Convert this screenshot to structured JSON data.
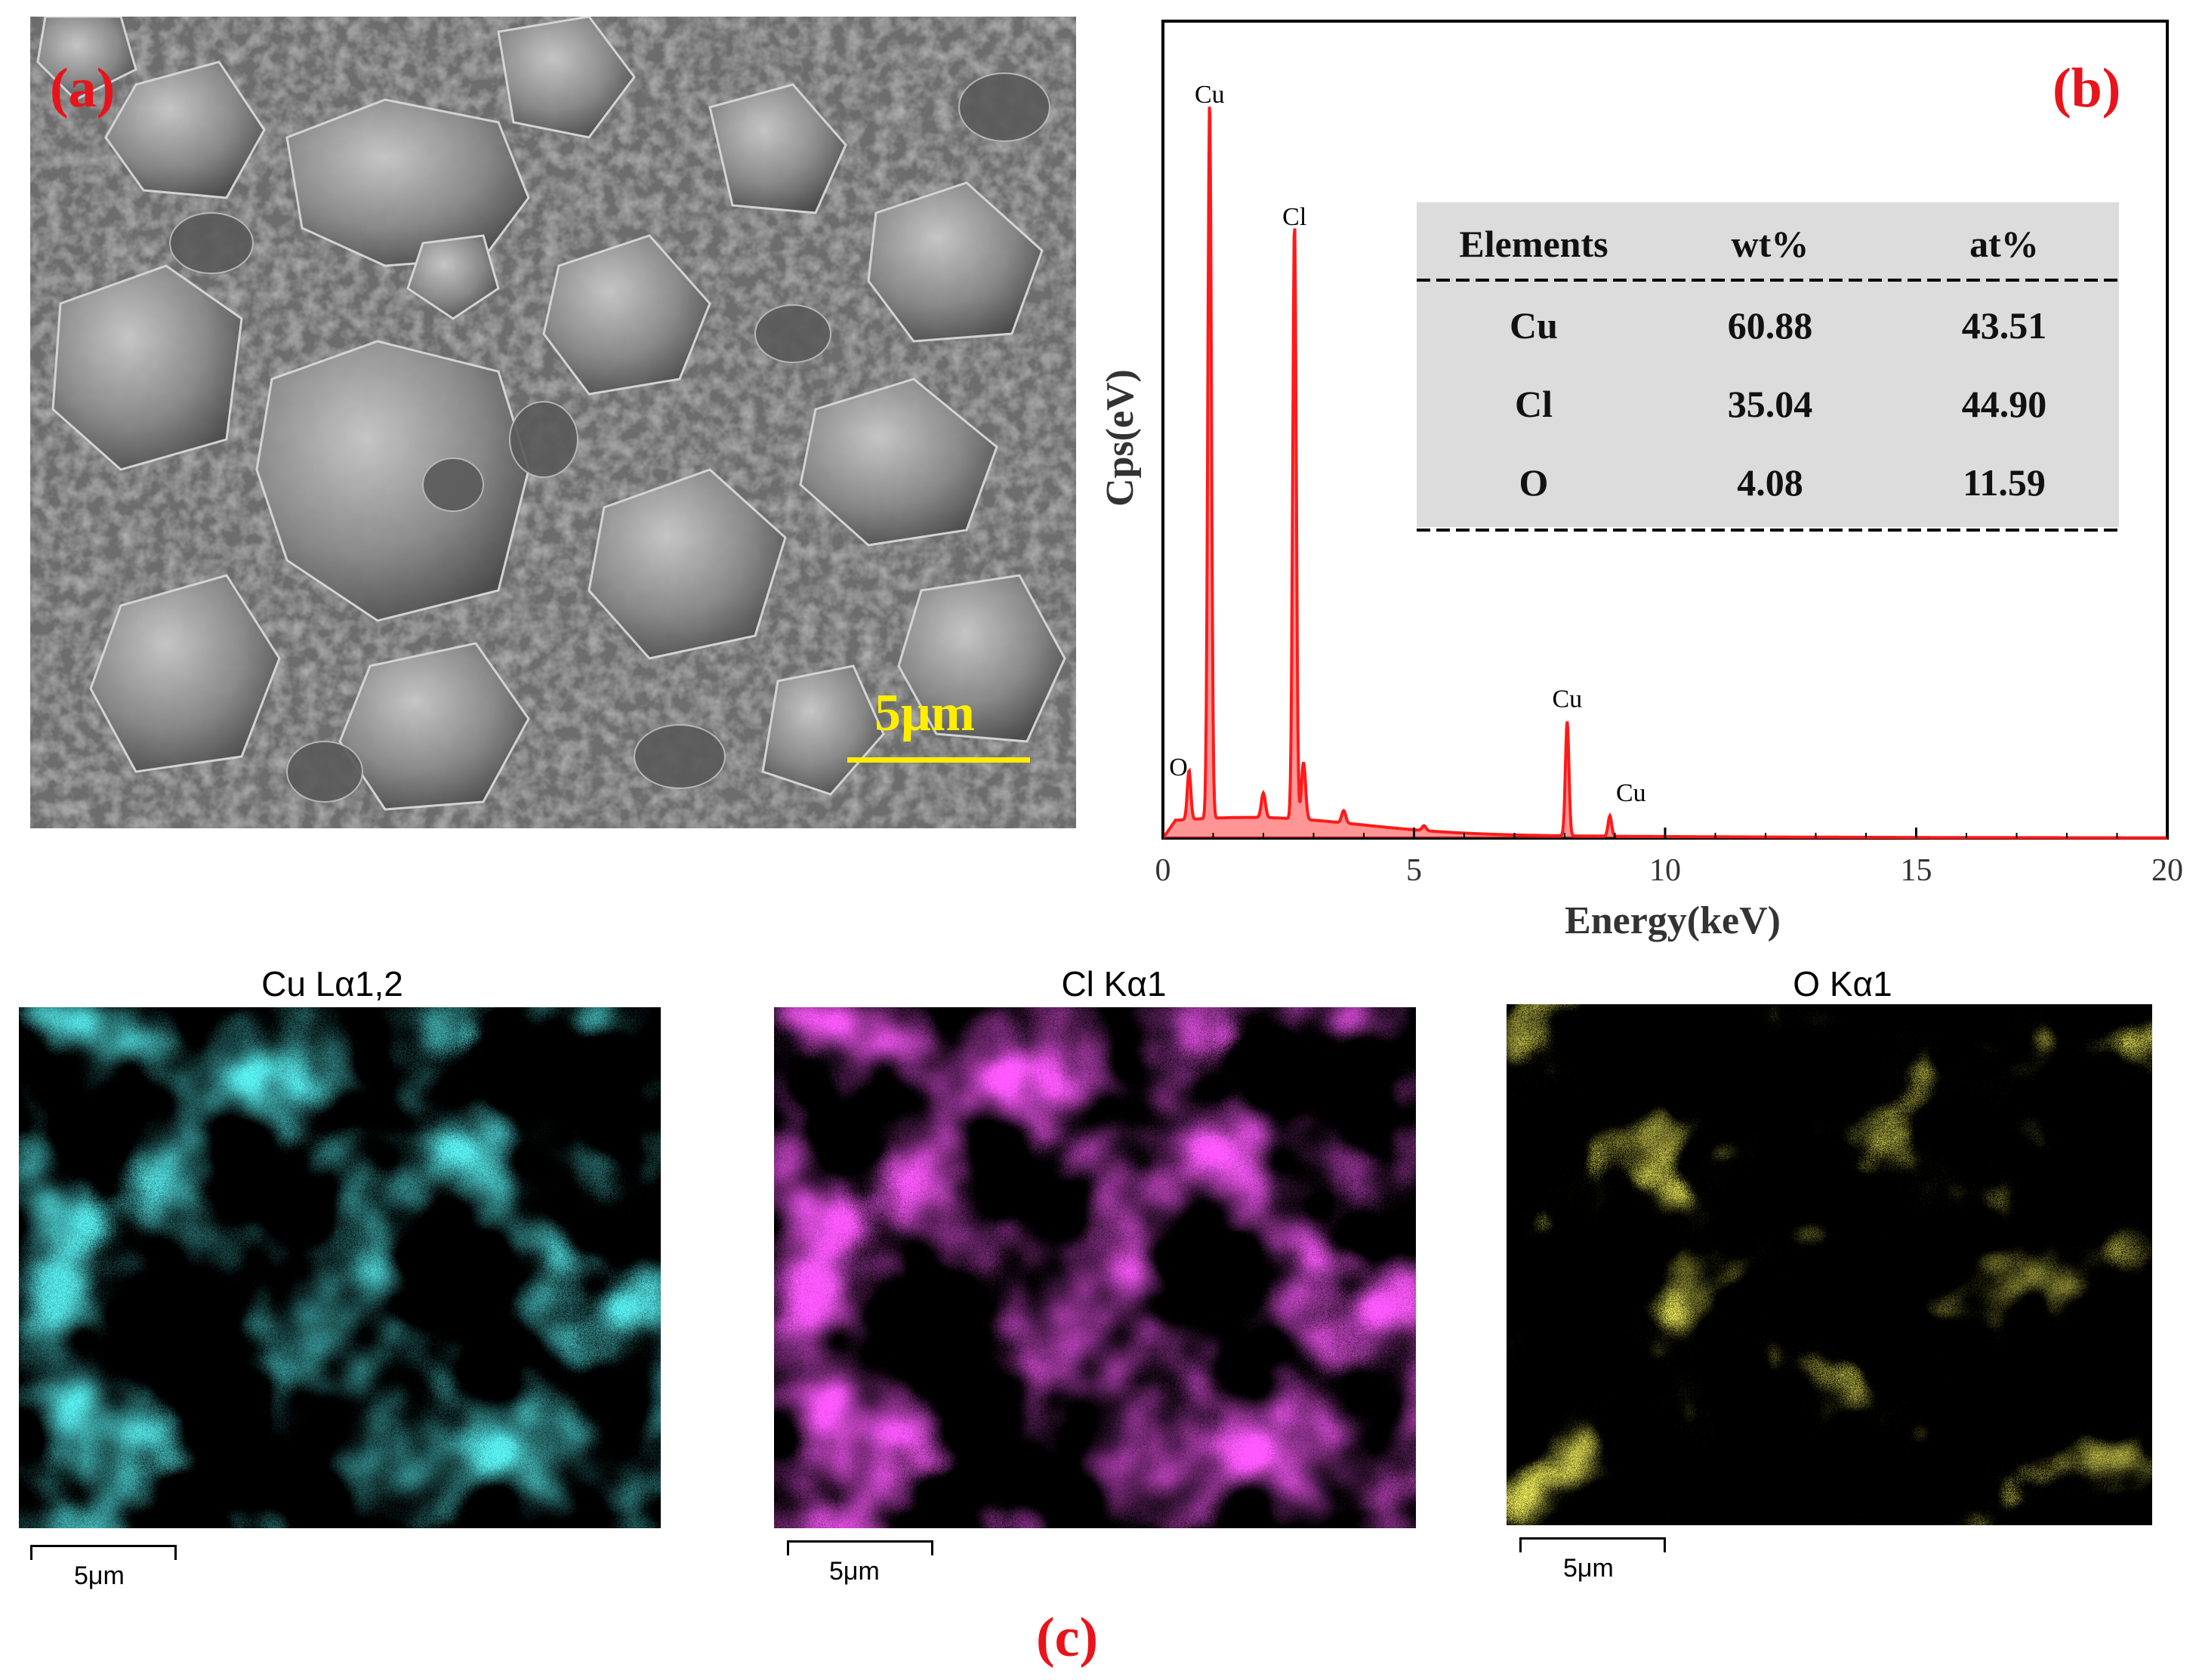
{
  "panels": {
    "a": {
      "label": "(a)",
      "scale_bar": "5μm"
    },
    "b": {
      "label": "(b)"
    },
    "c": {
      "label": "(c)"
    }
  },
  "chart_data": {
    "type": "line",
    "xlabel": "Energy(keV)",
    "ylabel": "Cps(eV)",
    "xlim": [
      0,
      20
    ],
    "xticks": [
      0,
      5,
      10,
      15,
      20
    ],
    "grid": false,
    "series_color": "#ff1a1a",
    "peaks": [
      {
        "label": "O",
        "energy": 0.52,
        "height": 0.06
      },
      {
        "label": "Cu",
        "energy": 0.93,
        "height": 0.88
      },
      {
        "label": "Cl",
        "energy": 2.62,
        "height": 0.73
      },
      {
        "label": "Cu",
        "energy": 8.05,
        "height": 0.14
      },
      {
        "label": "Cu",
        "energy": 8.9,
        "height": 0.025
      }
    ],
    "table": {
      "columns": [
        "Elements",
        "wt%",
        "at%"
      ],
      "rows": [
        [
          "Cu",
          "60.88",
          "43.51"
        ],
        [
          "Cl",
          "35.04",
          "44.90"
        ],
        [
          "O",
          "4.08",
          "11.59"
        ]
      ]
    }
  },
  "maps": [
    {
      "title": "Cu Lα1,2",
      "color": "#19e3e6",
      "scale": "5μm"
    },
    {
      "title": "Cl Kα1",
      "color": "#ff1aff",
      "scale": "5μm"
    },
    {
      "title": "O Kα1",
      "color": "#e6e019",
      "scale": "5μm"
    }
  ]
}
